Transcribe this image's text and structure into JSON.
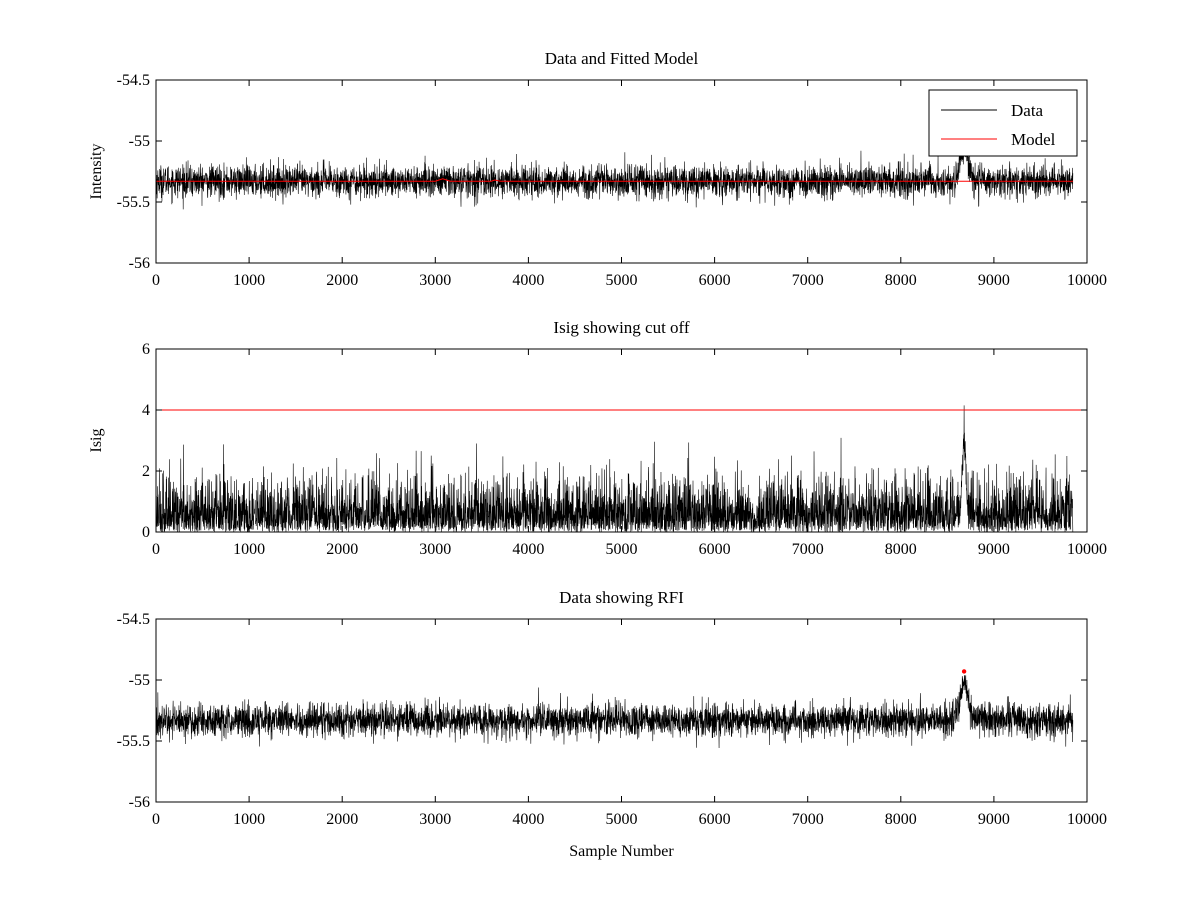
{
  "chart_data": [
    {
      "type": "line",
      "title": "Data and Fitted Model",
      "xlabel": "",
      "ylabel": "Intensity",
      "xlim": [
        0,
        10000
      ],
      "ylim": [
        -56,
        -54.5
      ],
      "xticks": [
        0,
        1000,
        2000,
        3000,
        4000,
        5000,
        6000,
        7000,
        8000,
        9000,
        10000
      ],
      "yticks": [
        -56,
        -55.5,
        -55,
        -54.5
      ],
      "xtick_labels": [
        "0",
        "1000",
        "2000",
        "3000",
        "4000",
        "5000",
        "6000",
        "7000",
        "8000",
        "9000",
        "10000"
      ],
      "ytick_labels": [
        "-56",
        "-55.5",
        "-55",
        "-54.5"
      ],
      "legend": {
        "position": "top-right",
        "entries": [
          "Data",
          "Model"
        ]
      },
      "series": [
        {
          "name": "Data",
          "color": "#000000",
          "n_samples": 9850,
          "base": -55.33,
          "noise_amplitude": 0.12,
          "spike_center": 8680,
          "spike_width": 60,
          "spike_height": 0.28
        },
        {
          "name": "Model",
          "color": "#ff0000",
          "x": [
            0,
            3000,
            3080,
            3160,
            3600,
            3640,
            3700,
            9850
          ],
          "y": [
            -55.33,
            -55.33,
            -55.31,
            -55.33,
            -55.33,
            -55.32,
            -55.33,
            -55.33
          ]
        }
      ]
    },
    {
      "type": "line",
      "title": "Isig showing cut off",
      "xlabel": "",
      "ylabel": "Isig",
      "xlim": [
        0,
        10000
      ],
      "ylim": [
        0,
        6
      ],
      "xticks": [
        0,
        1000,
        2000,
        3000,
        4000,
        5000,
        6000,
        7000,
        8000,
        9000,
        10000
      ],
      "yticks": [
        0,
        2,
        4,
        6
      ],
      "xtick_labels": [
        "0",
        "1000",
        "2000",
        "3000",
        "4000",
        "5000",
        "6000",
        "7000",
        "8000",
        "9000",
        "10000"
      ],
      "ytick_labels": [
        "0",
        "2",
        "4",
        "6"
      ],
      "series": [
        {
          "name": "Isig",
          "color": "#000000",
          "n_samples": 9850,
          "typical_max": 3.2,
          "spike_center": 8680,
          "spike_value": 4.15
        },
        {
          "name": "Cut off",
          "color": "#ff0000",
          "x": [
            0,
            10000
          ],
          "y": [
            4,
            4
          ]
        }
      ]
    },
    {
      "type": "line",
      "title": "Data showing RFI",
      "xlabel": "Sample Number",
      "ylabel": "",
      "xlim": [
        0,
        10000
      ],
      "ylim": [
        -56,
        -54.5
      ],
      "xticks": [
        0,
        1000,
        2000,
        3000,
        4000,
        5000,
        6000,
        7000,
        8000,
        9000,
        10000
      ],
      "yticks": [
        -56,
        -55.5,
        -55,
        -54.5
      ],
      "xtick_labels": [
        "0",
        "1000",
        "2000",
        "3000",
        "4000",
        "5000",
        "6000",
        "7000",
        "8000",
        "9000",
        "10000"
      ],
      "ytick_labels": [
        "-56",
        "-55.5",
        "-55",
        "-54.5"
      ],
      "series": [
        {
          "name": "Data",
          "color": "#000000",
          "n_samples": 9850,
          "base": -55.33,
          "noise_amplitude": 0.12,
          "spike_center": 8680,
          "spike_width": 60,
          "spike_height": 0.28
        },
        {
          "name": "RFI",
          "color": "#ff0000",
          "type": "scatter",
          "x": [
            8680
          ],
          "y": [
            -54.93
          ]
        }
      ]
    }
  ]
}
